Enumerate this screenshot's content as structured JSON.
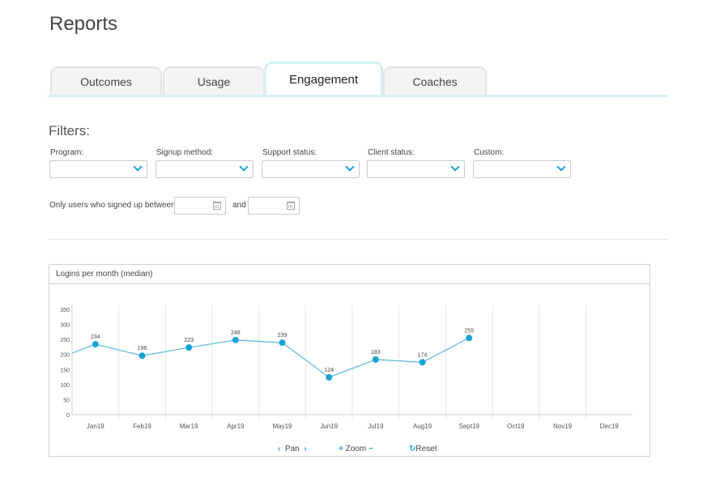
{
  "page": {
    "title": "Reports"
  },
  "tabs": [
    {
      "label": "Outcomes",
      "active": false
    },
    {
      "label": "Usage",
      "active": false
    },
    {
      "label": "Engagement",
      "active": true
    },
    {
      "label": "Coaches",
      "active": false
    }
  ],
  "filters": {
    "title": "Filters:",
    "items": [
      {
        "label": "Program:",
        "value": ""
      },
      {
        "label": "Signup method:",
        "value": ""
      },
      {
        "label": "Support status:",
        "value": ""
      },
      {
        "label": "Client status:",
        "value": ""
      },
      {
        "label": "Custom:",
        "value": ""
      }
    ],
    "date_range": {
      "label": "Only users who signed up between:",
      "and_label": "and",
      "from": "",
      "to": ""
    }
  },
  "chart_panel": {
    "header": "Logins per month (median)",
    "controls": {
      "pan": "Pan",
      "zoom": "Zoom",
      "reset": "Reset"
    }
  },
  "chart_data": {
    "type": "line",
    "title": "Logins per month (median)",
    "categories": [
      "Jan19",
      "Feb19",
      "Mar19",
      "Apr19",
      "May19",
      "Jun19",
      "Jul19",
      "Aug19",
      "Sept19",
      "Oct19",
      "Nov19",
      "Dec19"
    ],
    "series": [
      {
        "values": [
          234,
          196,
          223,
          248,
          239,
          124,
          183,
          174,
          255,
          null,
          null,
          null
        ]
      }
    ],
    "yticks": [
      0,
      50,
      100,
      150,
      200,
      250,
      300,
      350
    ],
    "ylim": [
      0,
      350
    ],
    "grid": true,
    "line_color": "#5bb9de",
    "point_color": "#1aa3d6"
  }
}
